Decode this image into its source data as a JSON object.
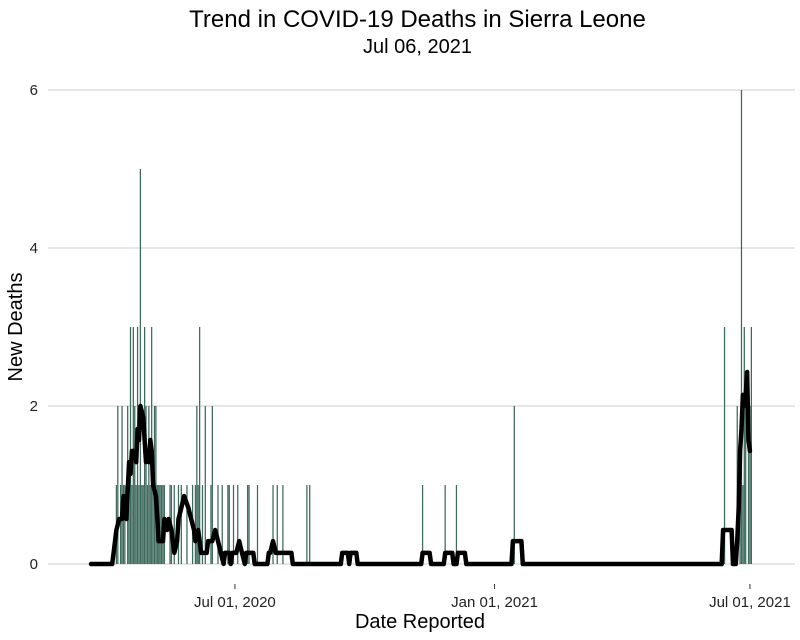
{
  "chart_data": {
    "type": "bar",
    "title": "Trend in COVID-19 Deaths in Sierra Leone",
    "subtitle": "Jul 06,  2021",
    "xlabel": "Date Reported",
    "ylabel": "New Deaths",
    "x_range": [
      "2020-03-21",
      "2021-07-06"
    ],
    "ylim": [
      0,
      6
    ],
    "y_ticks": [
      0,
      2,
      4,
      6
    ],
    "x_ticks": [
      {
        "date": "2020-07-01",
        "label": "Jul 01,  2020"
      },
      {
        "date": "2021-01-01",
        "label": "Jan 01,  2021"
      },
      {
        "date": "2021-07-01",
        "label": "Jul 01,  2021"
      }
    ],
    "grid": "horizontal",
    "colors": {
      "bars": "#3f6b5e",
      "trend": "#000000",
      "grid": "#cccccc"
    },
    "series": [
      {
        "type": "bar",
        "values": [
          {
            "date": "2020-04-08",
            "y": 1
          },
          {
            "date": "2020-04-09",
            "y": 2
          },
          {
            "date": "2020-04-11",
            "y": 1
          },
          {
            "date": "2020-04-12",
            "y": 2
          },
          {
            "date": "2020-04-13",
            "y": 1
          },
          {
            "date": "2020-04-14",
            "y": 1
          },
          {
            "date": "2020-04-16",
            "y": 2
          },
          {
            "date": "2020-04-17",
            "y": 1
          },
          {
            "date": "2020-04-18",
            "y": 3
          },
          {
            "date": "2020-04-19",
            "y": 1
          },
          {
            "date": "2020-04-20",
            "y": 3
          },
          {
            "date": "2020-04-21",
            "y": 2
          },
          {
            "date": "2020-04-22",
            "y": 1
          },
          {
            "date": "2020-04-23",
            "y": 3
          },
          {
            "date": "2020-04-24",
            "y": 1
          },
          {
            "date": "2020-04-25",
            "y": 5
          },
          {
            "date": "2020-04-26",
            "y": 1
          },
          {
            "date": "2020-04-27",
            "y": 1
          },
          {
            "date": "2020-04-28",
            "y": 3
          },
          {
            "date": "2020-04-29",
            "y": 2
          },
          {
            "date": "2020-04-30",
            "y": 1
          },
          {
            "date": "2020-05-01",
            "y": 2
          },
          {
            "date": "2020-05-02",
            "y": 1
          },
          {
            "date": "2020-05-03",
            "y": 3
          },
          {
            "date": "2020-05-04",
            "y": 1
          },
          {
            "date": "2020-05-05",
            "y": 2
          },
          {
            "date": "2020-05-06",
            "y": 2
          },
          {
            "date": "2020-05-07",
            "y": 1
          },
          {
            "date": "2020-05-08",
            "y": 1
          },
          {
            "date": "2020-05-09",
            "y": 1
          },
          {
            "date": "2020-05-10",
            "y": 1
          },
          {
            "date": "2020-05-11",
            "y": 1
          },
          {
            "date": "2020-05-12",
            "y": 1
          },
          {
            "date": "2020-05-16",
            "y": 1
          },
          {
            "date": "2020-05-17",
            "y": 1
          },
          {
            "date": "2020-05-19",
            "y": 1
          },
          {
            "date": "2020-05-22",
            "y": 1
          },
          {
            "date": "2020-05-24",
            "y": 1
          },
          {
            "date": "2020-05-28",
            "y": 1
          },
          {
            "date": "2020-06-01",
            "y": 1
          },
          {
            "date": "2020-06-03",
            "y": 1
          },
          {
            "date": "2020-06-04",
            "y": 2
          },
          {
            "date": "2020-06-05",
            "y": 1
          },
          {
            "date": "2020-06-06",
            "y": 3
          },
          {
            "date": "2020-06-08",
            "y": 1
          },
          {
            "date": "2020-06-10",
            "y": 2
          },
          {
            "date": "2020-06-14",
            "y": 1
          },
          {
            "date": "2020-06-15",
            "y": 2
          },
          {
            "date": "2020-06-19",
            "y": 1
          },
          {
            "date": "2020-06-22",
            "y": 1
          },
          {
            "date": "2020-06-26",
            "y": 1
          },
          {
            "date": "2020-06-27",
            "y": 1
          },
          {
            "date": "2020-06-30",
            "y": 1
          },
          {
            "date": "2020-07-03",
            "y": 1
          },
          {
            "date": "2020-07-10",
            "y": 1
          },
          {
            "date": "2020-07-11",
            "y": 1
          },
          {
            "date": "2020-07-17",
            "y": 1
          },
          {
            "date": "2020-07-28",
            "y": 1
          },
          {
            "date": "2020-07-31",
            "y": 1
          },
          {
            "date": "2020-08-04",
            "y": 1
          },
          {
            "date": "2020-08-21",
            "y": 1
          },
          {
            "date": "2020-08-23",
            "y": 1
          },
          {
            "date": "2020-11-11",
            "y": 1
          },
          {
            "date": "2020-11-27",
            "y": 1
          },
          {
            "date": "2020-12-05",
            "y": 1
          },
          {
            "date": "2021-01-15",
            "y": 2
          },
          {
            "date": "2021-06-13",
            "y": 3
          },
          {
            "date": "2021-06-22",
            "y": 2
          },
          {
            "date": "2021-06-24",
            "y": 1
          },
          {
            "date": "2021-06-25",
            "y": 6
          },
          {
            "date": "2021-06-26",
            "y": 1
          },
          {
            "date": "2021-06-27",
            "y": 3
          },
          {
            "date": "2021-06-28",
            "y": 2
          },
          {
            "date": "2021-06-30",
            "y": 2
          },
          {
            "date": "2021-07-01",
            "y": 2
          },
          {
            "date": "2021-07-02",
            "y": 3
          }
        ]
      },
      {
        "type": "line",
        "values": [
          {
            "date": "2020-03-21",
            "y": 0
          },
          {
            "date": "2020-04-05",
            "y": 0
          },
          {
            "date": "2020-04-06",
            "y": 0.14
          },
          {
            "date": "2020-04-08",
            "y": 0.43
          },
          {
            "date": "2020-04-10",
            "y": 0.57
          },
          {
            "date": "2020-04-12",
            "y": 0.57
          },
          {
            "date": "2020-04-13",
            "y": 0.86
          },
          {
            "date": "2020-04-15",
            "y": 0.57
          },
          {
            "date": "2020-04-17",
            "y": 1.29
          },
          {
            "date": "2020-04-18",
            "y": 1.14
          },
          {
            "date": "2020-04-19",
            "y": 1.43
          },
          {
            "date": "2020-04-21",
            "y": 1.43
          },
          {
            "date": "2020-04-22",
            "y": 1.29
          },
          {
            "date": "2020-04-23",
            "y": 1.71
          },
          {
            "date": "2020-04-24",
            "y": 1.57
          },
          {
            "date": "2020-04-25",
            "y": 2.0
          },
          {
            "date": "2020-04-27",
            "y": 1.86
          },
          {
            "date": "2020-04-29",
            "y": 1.29
          },
          {
            "date": "2020-04-30",
            "y": 1.43
          },
          {
            "date": "2020-05-01",
            "y": 1.29
          },
          {
            "date": "2020-05-02",
            "y": 1.57
          },
          {
            "date": "2020-05-03",
            "y": 1.43
          },
          {
            "date": "2020-05-04",
            "y": 1.0
          },
          {
            "date": "2020-05-06",
            "y": 0.86
          },
          {
            "date": "2020-05-08",
            "y": 0.29
          },
          {
            "date": "2020-05-11",
            "y": 0.29
          },
          {
            "date": "2020-05-12",
            "y": 0.57
          },
          {
            "date": "2020-05-14",
            "y": 0.43
          },
          {
            "date": "2020-05-15",
            "y": 0.57
          },
          {
            "date": "2020-05-17",
            "y": 0.43
          },
          {
            "date": "2020-05-19",
            "y": 0.14
          },
          {
            "date": "2020-05-21",
            "y": 0.29
          },
          {
            "date": "2020-05-22",
            "y": 0.57
          },
          {
            "date": "2020-05-24",
            "y": 0.71
          },
          {
            "date": "2020-05-26",
            "y": 0.86
          },
          {
            "date": "2020-05-29",
            "y": 0.71
          },
          {
            "date": "2020-05-31",
            "y": 0.57
          },
          {
            "date": "2020-06-02",
            "y": 0.43
          },
          {
            "date": "2020-06-03",
            "y": 0.29
          },
          {
            "date": "2020-06-05",
            "y": 0.43
          },
          {
            "date": "2020-06-06",
            "y": 0.29
          },
          {
            "date": "2020-06-07",
            "y": 0.14
          },
          {
            "date": "2020-06-11",
            "y": 0.14
          },
          {
            "date": "2020-06-12",
            "y": 0.29
          },
          {
            "date": "2020-06-15",
            "y": 0.29
          },
          {
            "date": "2020-06-17",
            "y": 0.43
          },
          {
            "date": "2020-06-19",
            "y": 0.29
          },
          {
            "date": "2020-06-21",
            "y": 0.14
          },
          {
            "date": "2020-06-23",
            "y": 0.0
          },
          {
            "date": "2020-06-24",
            "y": 0.14
          },
          {
            "date": "2020-06-27",
            "y": 0.14
          },
          {
            "date": "2020-06-28",
            "y": 0.0
          },
          {
            "date": "2020-06-29",
            "y": 0.14
          },
          {
            "date": "2020-07-02",
            "y": 0.14
          },
          {
            "date": "2020-07-04",
            "y": 0.29
          },
          {
            "date": "2020-07-06",
            "y": 0.14
          },
          {
            "date": "2020-07-08",
            "y": 0.0
          },
          {
            "date": "2020-07-09",
            "y": 0.14
          },
          {
            "date": "2020-07-14",
            "y": 0.14
          },
          {
            "date": "2020-07-15",
            "y": 0.0
          },
          {
            "date": "2020-07-24",
            "y": 0.0
          },
          {
            "date": "2020-07-25",
            "y": 0.14
          },
          {
            "date": "2020-07-26",
            "y": 0.14
          },
          {
            "date": "2020-07-28",
            "y": 0.29
          },
          {
            "date": "2020-07-30",
            "y": 0.14
          },
          {
            "date": "2020-08-10",
            "y": 0.14
          },
          {
            "date": "2020-08-11",
            "y": 0.0
          },
          {
            "date": "2020-09-14",
            "y": 0.0
          },
          {
            "date": "2020-09-15",
            "y": 0.14
          },
          {
            "date": "2020-09-19",
            "y": 0.14
          },
          {
            "date": "2020-09-20",
            "y": 0.0
          },
          {
            "date": "2020-09-21",
            "y": 0.14
          },
          {
            "date": "2020-09-25",
            "y": 0.14
          },
          {
            "date": "2020-09-26",
            "y": 0.0
          },
          {
            "date": "2020-11-10",
            "y": 0.0
          },
          {
            "date": "2020-11-11",
            "y": 0.14
          },
          {
            "date": "2020-11-16",
            "y": 0.14
          },
          {
            "date": "2020-11-17",
            "y": 0.0
          },
          {
            "date": "2020-11-26",
            "y": 0.0
          },
          {
            "date": "2020-11-27",
            "y": 0.14
          },
          {
            "date": "2020-12-02",
            "y": 0.14
          },
          {
            "date": "2020-12-03",
            "y": 0.0
          },
          {
            "date": "2020-12-05",
            "y": 0.0
          },
          {
            "date": "2020-12-06",
            "y": 0.14
          },
          {
            "date": "2020-12-11",
            "y": 0.14
          },
          {
            "date": "2020-12-12",
            "y": 0.0
          },
          {
            "date": "2021-01-13",
            "y": 0.0
          },
          {
            "date": "2021-01-14",
            "y": 0.29
          },
          {
            "date": "2021-01-20",
            "y": 0.29
          },
          {
            "date": "2021-01-21",
            "y": 0.0
          },
          {
            "date": "2021-06-11",
            "y": 0.0
          },
          {
            "date": "2021-06-12",
            "y": 0.43
          },
          {
            "date": "2021-06-18",
            "y": 0.43
          },
          {
            "date": "2021-06-19",
            "y": 0.0
          },
          {
            "date": "2021-06-21",
            "y": 0.0
          },
          {
            "date": "2021-06-22",
            "y": 0.29
          },
          {
            "date": "2021-06-23",
            "y": 0.71
          },
          {
            "date": "2021-06-24",
            "y": 1.43
          },
          {
            "date": "2021-06-25",
            "y": 1.71
          },
          {
            "date": "2021-06-26",
            "y": 2.14
          },
          {
            "date": "2021-06-27",
            "y": 2.0
          },
          {
            "date": "2021-06-28",
            "y": 2.14
          },
          {
            "date": "2021-06-29",
            "y": 2.43
          },
          {
            "date": "2021-06-30",
            "y": 1.57
          },
          {
            "date": "2021-07-01",
            "y": 1.43
          }
        ]
      }
    ]
  }
}
